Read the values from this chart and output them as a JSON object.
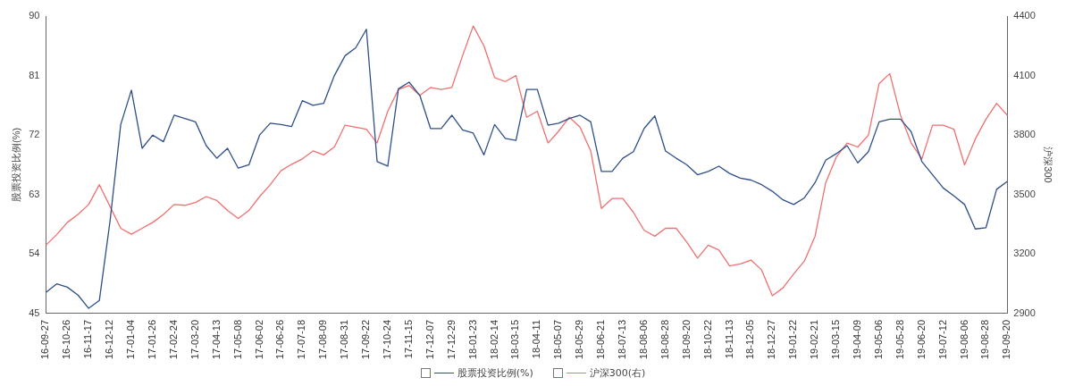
{
  "chart_data": {
    "type": "line",
    "ylabel": "股票投资比例(%)",
    "y2label": "沪深300",
    "categories": [
      "16-09-27",
      null,
      "16-10-26",
      null,
      "16-11-17",
      null,
      "16-12-12",
      null,
      "17-01-04",
      null,
      "17-01-26",
      null,
      "17-02-24",
      null,
      "17-03-20",
      null,
      "17-04-13",
      null,
      "17-05-08",
      null,
      "17-06-02",
      null,
      "17-06-26",
      null,
      "17-07-18",
      null,
      "17-08-09",
      null,
      "17-08-31",
      null,
      "17-09-22",
      null,
      "17-10-24",
      null,
      "17-11-15",
      null,
      "17-12-07",
      null,
      "17-12-29",
      null,
      "18-01-23",
      null,
      "18-02-14",
      null,
      "18-03-15",
      null,
      "18-04-11",
      null,
      "18-05-07",
      null,
      "18-05-29",
      null,
      "18-06-21",
      null,
      "18-07-13",
      null,
      "18-08-06",
      null,
      "18-08-28",
      null,
      "18-09-20",
      null,
      "18-10-22",
      null,
      "18-11-13",
      null,
      "18-12-05",
      null,
      "18-12-27",
      null,
      "19-01-22",
      null,
      "19-02-21",
      null,
      "19-03-15",
      null,
      "19-04-09",
      null,
      "19-05-06",
      null,
      "19-05-28",
      null,
      "19-06-20",
      null,
      "19-07-12",
      null,
      "19-08-06",
      null,
      "19-08-28",
      null,
      "19-09-20"
    ],
    "series": [
      {
        "name": "股票投资比例(%)",
        "color": "#2e4f8a",
        "values": [
          48.2,
          49.5,
          49,
          47.8,
          45.8,
          47,
          59,
          73.6,
          78.8,
          70,
          72,
          71,
          75,
          74.5,
          74,
          70.4,
          68.5,
          70,
          67,
          67.5,
          72,
          73.8,
          73.6,
          73.3,
          77.2,
          76.5,
          76.8,
          81,
          84,
          85.2,
          88,
          68,
          67.3,
          79,
          80,
          78,
          73,
          73,
          75,
          72.8,
          72.3,
          69,
          73.6,
          71.5,
          71.2,
          78.9,
          78.9,
          73.5,
          73.8,
          74.5,
          75,
          74,
          66.5,
          66.5,
          68.5,
          69.5,
          73,
          74.9,
          69.6,
          68.5,
          67.5,
          66,
          66.5,
          67.3,
          66.2,
          65.5,
          65.2,
          64.5,
          63.5,
          62.2,
          61.5,
          62.5,
          64.8,
          68.2,
          69.2,
          70.4,
          67.8,
          69.5,
          74,
          74.4,
          74.4,
          72.5,
          68,
          66,
          64,
          62.8,
          61.5,
          57.8,
          58,
          63.8,
          65
        ]
      },
      {
        "name": "沪深300(右)",
        "color": "#f07070",
        "axis": "y2",
        "values": [
          3245,
          3298,
          3360,
          3400,
          3450,
          3550,
          3440,
          3330,
          3300,
          3330,
          3360,
          3400,
          3450,
          3446,
          3460,
          3490,
          3470,
          3420,
          3380,
          3420,
          3490,
          3550,
          3620,
          3653,
          3680,
          3720,
          3700,
          3740,
          3850,
          3840,
          3830,
          3760,
          3920,
          4030,
          4050,
          4000,
          4040,
          4030,
          4040,
          4200,
          4350,
          4250,
          4090,
          4070,
          4100,
          3890,
          3920,
          3760,
          3820,
          3890,
          3840,
          3720,
          3430,
          3480,
          3480,
          3410,
          3320,
          3290,
          3330,
          3330,
          3260,
          3180,
          3245,
          3220,
          3140,
          3150,
          3170,
          3120,
          2990,
          3030,
          3100,
          3165,
          3290,
          3560,
          3690,
          3760,
          3740,
          3800,
          4060,
          4110,
          3900,
          3760,
          3680,
          3850,
          3850,
          3830,
          3650,
          3780,
          3880,
          3960,
          3900
        ]
      }
    ],
    "ylim": [
      45,
      90
    ],
    "yticks": [
      45,
      54,
      63,
      72,
      81,
      90
    ],
    "y2lim": [
      2900,
      4400
    ],
    "y2ticks": [
      2900,
      3200,
      3500,
      3800,
      4100,
      4400
    ],
    "legend": "bottom",
    "grid": false,
    "marker": "none",
    "line_style": "solid"
  }
}
